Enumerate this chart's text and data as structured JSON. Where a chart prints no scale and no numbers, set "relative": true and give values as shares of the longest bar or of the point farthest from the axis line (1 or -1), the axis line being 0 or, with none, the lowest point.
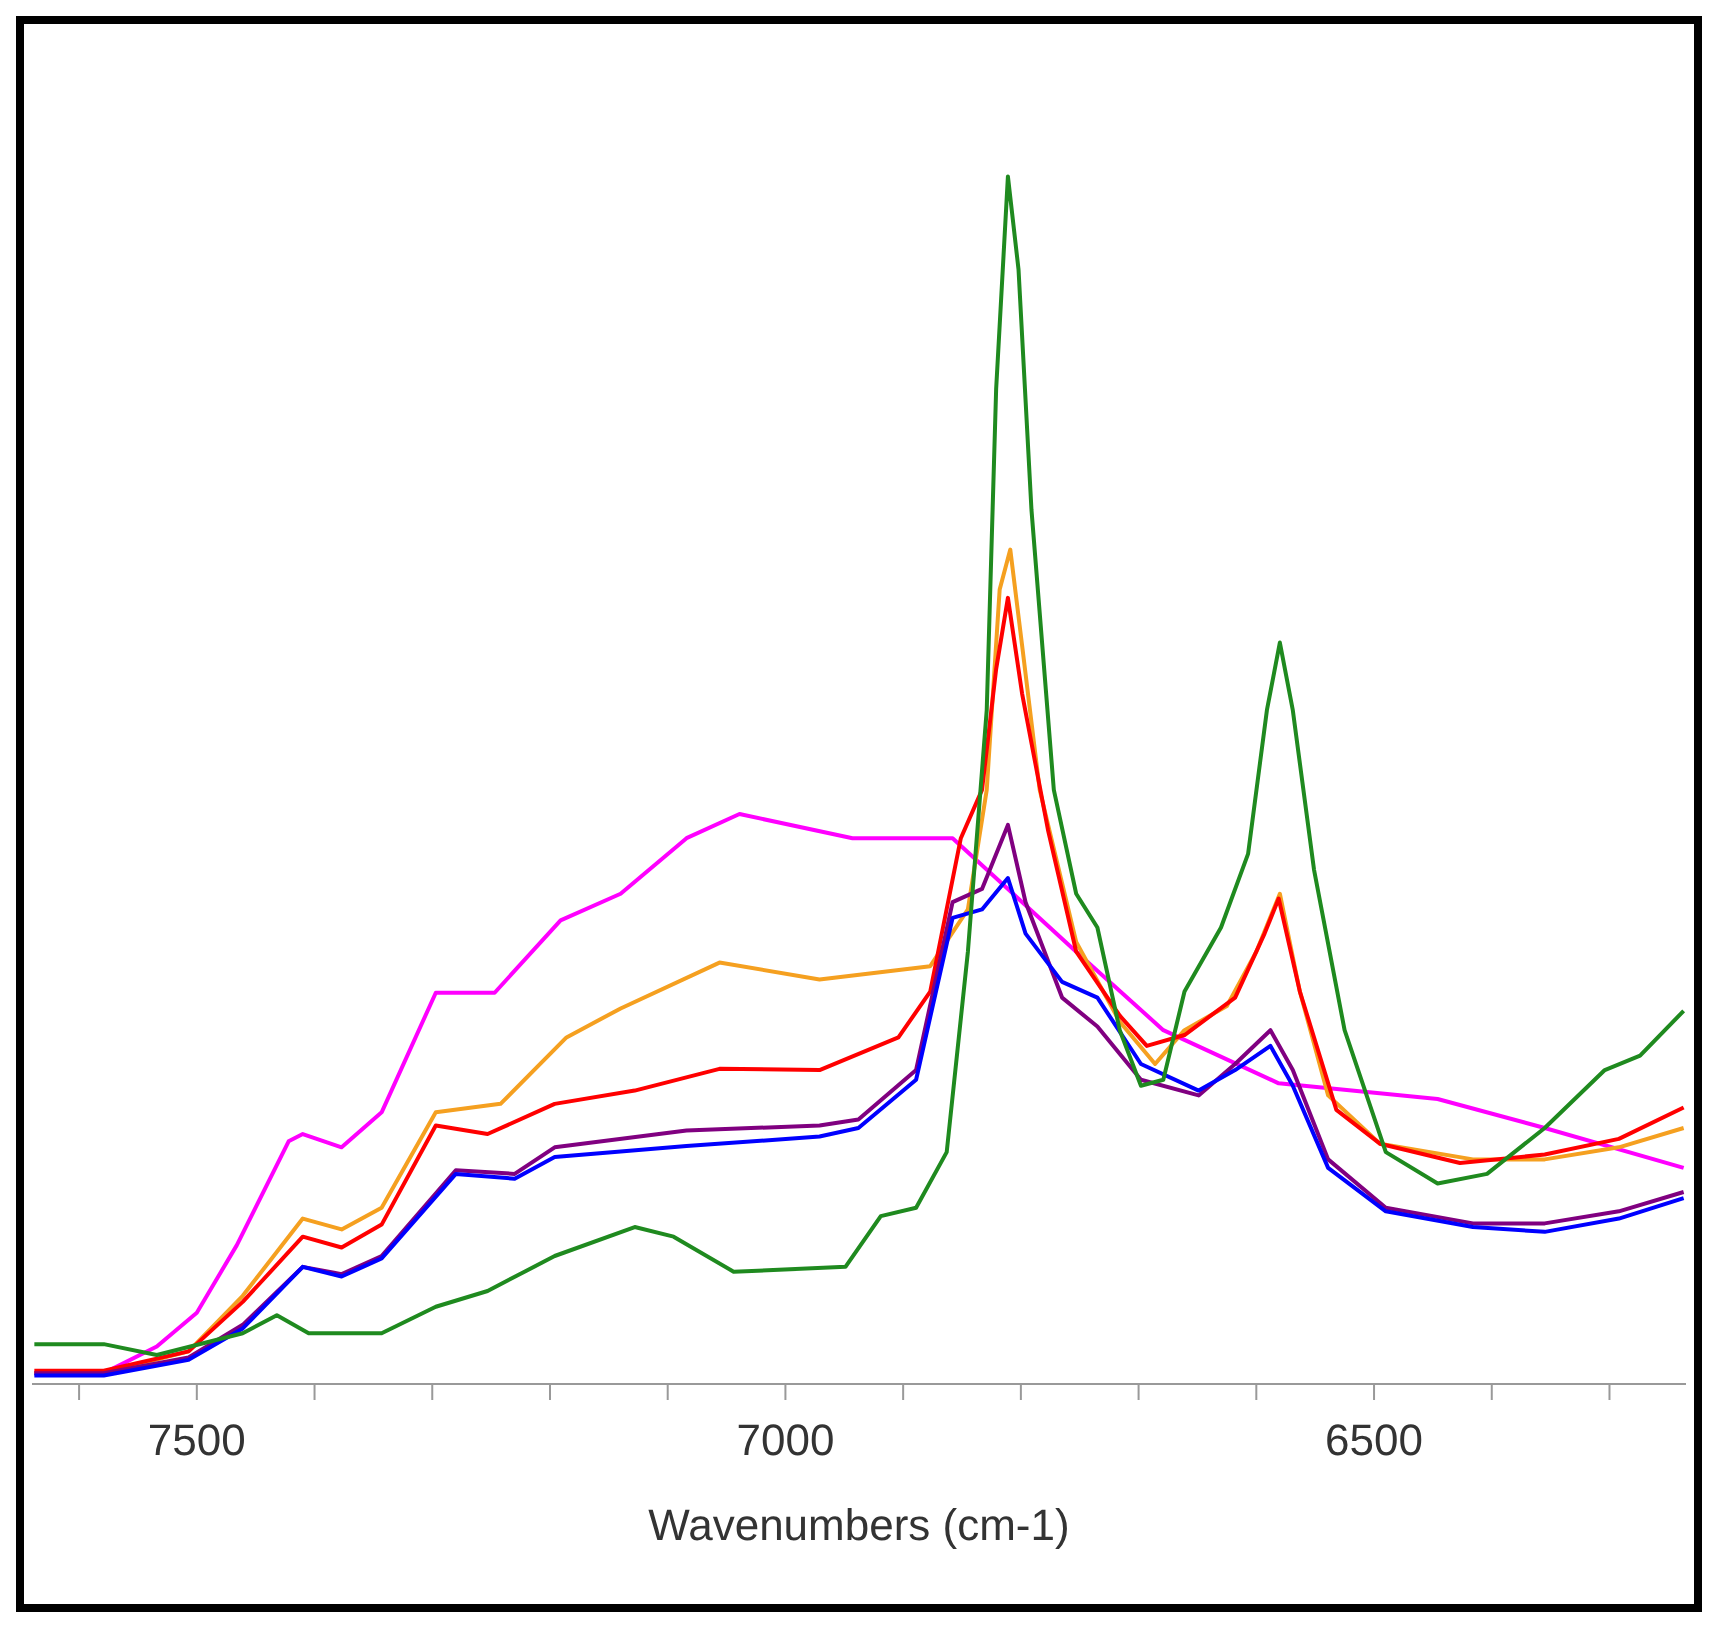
{
  "chart_data": {
    "type": "line",
    "relative": true,
    "xlabel": "Wavenumbers (cm-1)",
    "xlim": [
      7640,
      6235
    ],
    "xticks": [
      {
        "value": 7600,
        "label": null
      },
      7500,
      {
        "value": 7400,
        "label": null
      },
      {
        "value": 7300,
        "label": null
      },
      {
        "value": 7200,
        "label": null
      },
      {
        "value": 7100,
        "label": null
      },
      7000,
      {
        "value": 6900,
        "label": null
      },
      {
        "value": 6800,
        "label": null
      },
      {
        "value": 6700,
        "label": null
      },
      {
        "value": 6600,
        "label": null
      },
      6500,
      {
        "value": 6400,
        "label": null
      },
      {
        "value": 6300,
        "label": null
      }
    ],
    "marker": "none",
    "line_style": "solid",
    "series": [
      {
        "color": "#ff00ff",
        "x": [
          7638,
          7579,
          7534,
          7500,
          7466,
          7422,
          7410,
          7377,
          7343,
          7297,
          7247,
          7191,
          7140,
          7084,
          7039,
          6943,
          6858,
          6753,
          6679,
          6581,
          6446,
          6355,
          6237
        ],
        "values": [
          0.009,
          0.009,
          0.031,
          0.059,
          0.115,
          0.201,
          0.207,
          0.196,
          0.225,
          0.324,
          0.324,
          0.384,
          0.406,
          0.452,
          0.472,
          0.452,
          0.452,
          0.358,
          0.293,
          0.249,
          0.236,
          0.212,
          0.179
        ]
      },
      {
        "color": "#f5a020",
        "x": [
          7638,
          7579,
          7507,
          7461,
          7410,
          7377,
          7343,
          7297,
          7242,
          7186,
          7140,
          7056,
          6971,
          6877,
          6845,
          6829,
          6818,
          6809,
          6799,
          6784,
          6753,
          6716,
          6686,
          6661,
          6625,
          6600,
          6580,
          6563,
          6539,
          6495,
          6416,
          6355,
          6292,
          6237
        ],
        "values": [
          0.009,
          0.009,
          0.027,
          0.073,
          0.137,
          0.128,
          0.146,
          0.225,
          0.232,
          0.287,
          0.311,
          0.349,
          0.335,
          0.346,
          0.393,
          0.492,
          0.658,
          0.691,
          0.612,
          0.492,
          0.366,
          0.3,
          0.265,
          0.293,
          0.313,
          0.358,
          0.406,
          0.325,
          0.239,
          0.199,
          0.186,
          0.186,
          0.196,
          0.212
        ]
      },
      {
        "color": "#ff0000",
        "x": [
          7638,
          7579,
          7507,
          7461,
          7410,
          7377,
          7343,
          7297,
          7253,
          7196,
          7128,
          7056,
          6971,
          6904,
          6877,
          6851,
          6833,
          6821,
          6811,
          6799,
          6777,
          6753,
          6716,
          6693,
          6661,
          6618,
          6593,
          6581,
          6563,
          6532,
          6495,
          6427,
          6355,
          6292,
          6237
        ],
        "values": [
          0.011,
          0.011,
          0.027,
          0.068,
          0.122,
          0.113,
          0.132,
          0.214,
          0.207,
          0.232,
          0.243,
          0.261,
          0.26,
          0.287,
          0.325,
          0.452,
          0.492,
          0.592,
          0.651,
          0.572,
          0.459,
          0.358,
          0.305,
          0.28,
          0.289,
          0.32,
          0.373,
          0.402,
          0.325,
          0.227,
          0.199,
          0.183,
          0.19,
          0.203,
          0.229
        ]
      },
      {
        "color": "#800080",
        "x": [
          7638,
          7579,
          7507,
          7461,
          7410,
          7377,
          7343,
          7280,
          7230,
          7196,
          7084,
          6971,
          6938,
          6889,
          6858,
          6833,
          6811,
          6796,
          6765,
          6735,
          6698,
          6649,
          6618,
          6588,
          6569,
          6539,
          6490,
          6416,
          6355,
          6292,
          6237
        ],
        "values": [
          0.009,
          0.009,
          0.022,
          0.049,
          0.097,
          0.091,
          0.106,
          0.177,
          0.174,
          0.196,
          0.21,
          0.214,
          0.219,
          0.26,
          0.399,
          0.41,
          0.463,
          0.399,
          0.32,
          0.296,
          0.252,
          0.239,
          0.265,
          0.293,
          0.26,
          0.186,
          0.146,
          0.133,
          0.133,
          0.143,
          0.159
        ]
      },
      {
        "color": "#0000ff",
        "x": [
          7638,
          7579,
          7507,
          7461,
          7410,
          7377,
          7343,
          7280,
          7230,
          7196,
          7084,
          6971,
          6938,
          6889,
          6858,
          6833,
          6811,
          6796,
          6765,
          6735,
          6698,
          6649,
          6618,
          6588,
          6569,
          6539,
          6490,
          6416,
          6355,
          6292,
          6237
        ],
        "values": [
          0.007,
          0.007,
          0.02,
          0.046,
          0.097,
          0.089,
          0.104,
          0.174,
          0.17,
          0.188,
          0.197,
          0.205,
          0.212,
          0.252,
          0.386,
          0.393,
          0.419,
          0.373,
          0.333,
          0.32,
          0.265,
          0.243,
          0.26,
          0.28,
          0.247,
          0.179,
          0.143,
          0.13,
          0.126,
          0.137,
          0.154
        ]
      },
      {
        "color": "#1f8a1f",
        "x": [
          7638,
          7579,
          7534,
          7461,
          7432,
          7405,
          7343,
          7297,
          7253,
          7196,
          7128,
          7095,
          7044,
          6949,
          6919,
          6889,
          6863,
          6845,
          6829,
          6821,
          6811,
          6802,
          6791,
          6772,
          6753,
          6735,
          6716,
          6698,
          6679,
          6661,
          6630,
          6607,
          6591,
          6580,
          6569,
          6551,
          6525,
          6490,
          6446,
          6404,
          6355,
          6304,
          6274,
          6237
        ],
        "values": [
          0.033,
          0.033,
          0.024,
          0.042,
          0.057,
          0.042,
          0.042,
          0.064,
          0.077,
          0.106,
          0.13,
          0.122,
          0.093,
          0.097,
          0.139,
          0.146,
          0.192,
          0.358,
          0.558,
          0.824,
          1,
          0.923,
          0.724,
          0.492,
          0.406,
          0.378,
          0.293,
          0.247,
          0.252,
          0.325,
          0.378,
          0.439,
          0.558,
          0.614,
          0.558,
          0.426,
          0.293,
          0.192,
          0.166,
          0.174,
          0.212,
          0.26,
          0.272,
          0.309
        ]
      }
    ]
  }
}
